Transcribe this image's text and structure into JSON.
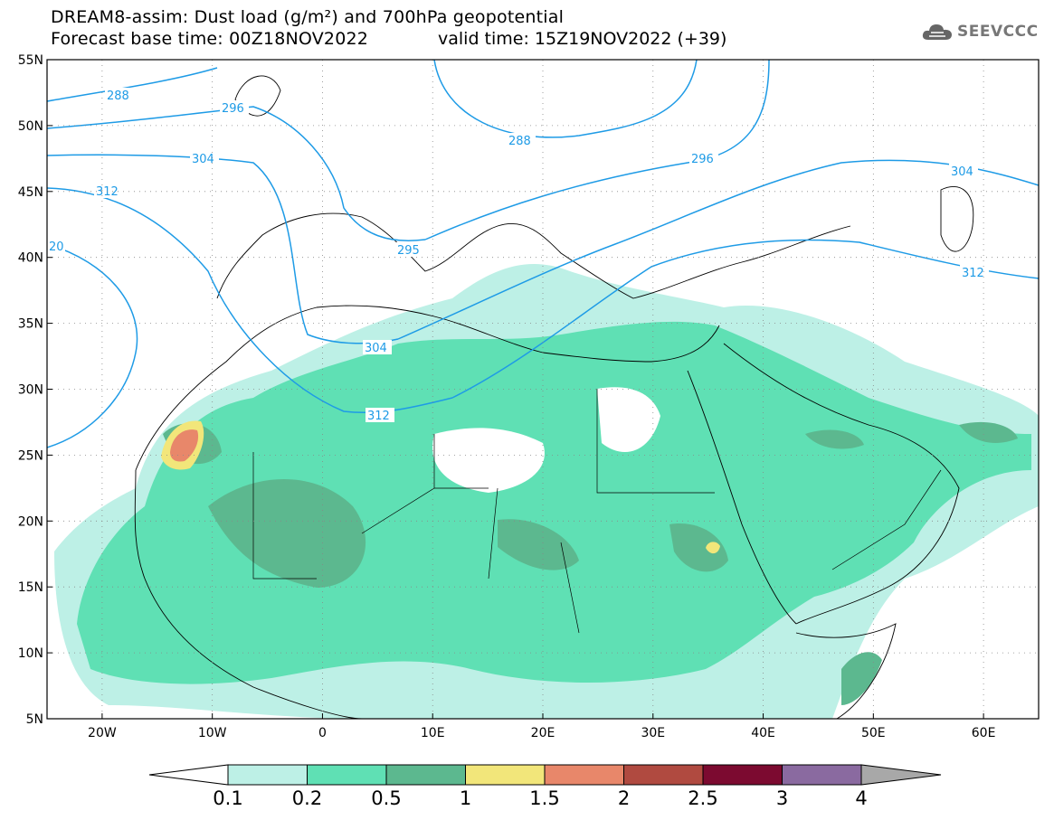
{
  "header": {
    "title_line1": "DREAM8-assim: Dust load (g/m²) and 700hPa geopotential",
    "title_line2": "Forecast base time: 00Z18NOV2022",
    "valid_time": "valid time: 15Z19NOV2022 (+39)"
  },
  "logo": {
    "text": "SEEVCCC",
    "icon": "cloud-icon"
  },
  "map": {
    "lon_range": [
      -25,
      65
    ],
    "lat_range": [
      5,
      55
    ],
    "lat_labels": [
      "55N",
      "50N",
      "45N",
      "40N",
      "35N",
      "30N",
      "25N",
      "20N",
      "15N",
      "10N",
      "5N"
    ],
    "lon_labels": [
      "20W",
      "10W",
      "0",
      "10E",
      "20E",
      "30E",
      "40E",
      "50E",
      "60E"
    ],
    "contour_labels": [
      "288",
      "296",
      "304",
      "312",
      "288",
      "296",
      "304",
      "312",
      "295",
      "304",
      "312",
      "20"
    ]
  },
  "colorbar": {
    "labels": [
      "0.1",
      "0.2",
      "0.5",
      "1",
      "1.5",
      "2",
      "2.5",
      "3",
      "4"
    ],
    "colors": [
      "#bdf0e6",
      "#5fe0b4",
      "#5cb88f",
      "#f2e67a",
      "#e8876a",
      "#b04a40",
      "#7c0a30",
      "#8a6aa0"
    ],
    "under_color": "#ffffff",
    "over_color": "#a8a8a8"
  }
}
